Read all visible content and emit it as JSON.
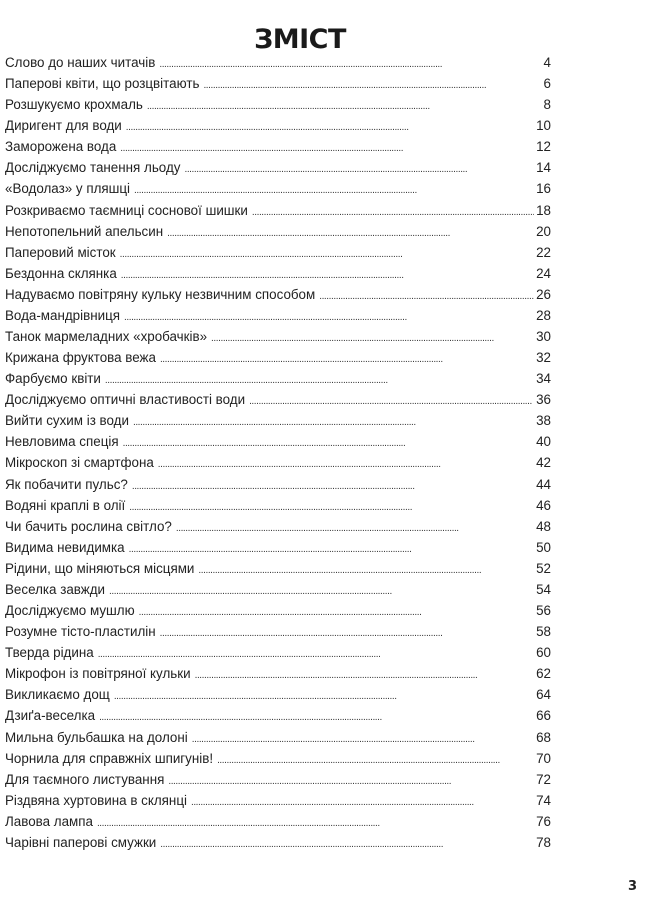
{
  "title": "ЗМІСТ",
  "entries": [
    {
      "label": "Слово до наших читачів",
      "page": "4"
    },
    {
      "label": "Паперові квіти, що розцвітають",
      "page": "6"
    },
    {
      "label": "Розшукуємо крохмаль",
      "page": "8"
    },
    {
      "label": "Диригент для води",
      "page": "10"
    },
    {
      "label": "Заморожена вода",
      "page": "12"
    },
    {
      "label": "Досліджуємо танення льоду",
      "page": "14"
    },
    {
      "label": "«Водолаз» у пляшці",
      "page": "16"
    },
    {
      "label": "Розкриваємо таємниці соснової шишки",
      "page": "18"
    },
    {
      "label": "Непотопельний апельсин",
      "page": "20"
    },
    {
      "label": "Паперовий місток",
      "page": "22"
    },
    {
      "label": "Бездонна склянка",
      "page": "24"
    },
    {
      "label": "Надуваємо повітряну кульку незвичним способом",
      "page": "26"
    },
    {
      "label": "Вода-мандрівниця",
      "page": "28"
    },
    {
      "label": "Танок мармеладних «хробачків»",
      "page": "30"
    },
    {
      "label": "Крижана фруктова вежа",
      "page": "32"
    },
    {
      "label": "Фарбуємо квіти",
      "page": "34"
    },
    {
      "label": "Досліджуємо оптичні властивості води",
      "page": "36"
    },
    {
      "label": "Вийти сухим із води",
      "page": "38"
    },
    {
      "label": "Невловима спеція",
      "page": "40"
    },
    {
      "label": "Мікроскоп зі смартфона",
      "page": "42"
    },
    {
      "label": "Як побачити пульс?",
      "page": "44"
    },
    {
      "label": "Водяні краплі в олії",
      "page": "46"
    },
    {
      "label": "Чи бачить рослина світло?",
      "page": "48"
    },
    {
      "label": "Видима невидимка",
      "page": "50"
    },
    {
      "label": "Рідини, що міняються місцями",
      "page": "52"
    },
    {
      "label": "Веселка завжди",
      "page": "54"
    },
    {
      "label": "Досліджуємо мушлю",
      "page": "56"
    },
    {
      "label": "Розумне тісто-пластилін",
      "page": "58"
    },
    {
      "label": "Тверда рідина",
      "page": "60"
    },
    {
      "label": "Мікрофон із повітряної кульки",
      "page": "62"
    },
    {
      "label": "Викликаємо дощ",
      "page": "64"
    },
    {
      "label": "Дзиґа-веселка",
      "page": "66"
    },
    {
      "label": "Мильна бульбашка на долоні",
      "page": "68"
    },
    {
      "label": "Чорнила для справжніх шпигунів!",
      "page": "70"
    },
    {
      "label": "Для таємного листування",
      "page": "72"
    },
    {
      "label": "Різдвяна хуртовина в склянці",
      "page": "74"
    },
    {
      "label": "Лавова лампа",
      "page": "76"
    },
    {
      "label": "Чарівні паперові смужки",
      "page": "78"
    }
  ],
  "page_number": "3"
}
